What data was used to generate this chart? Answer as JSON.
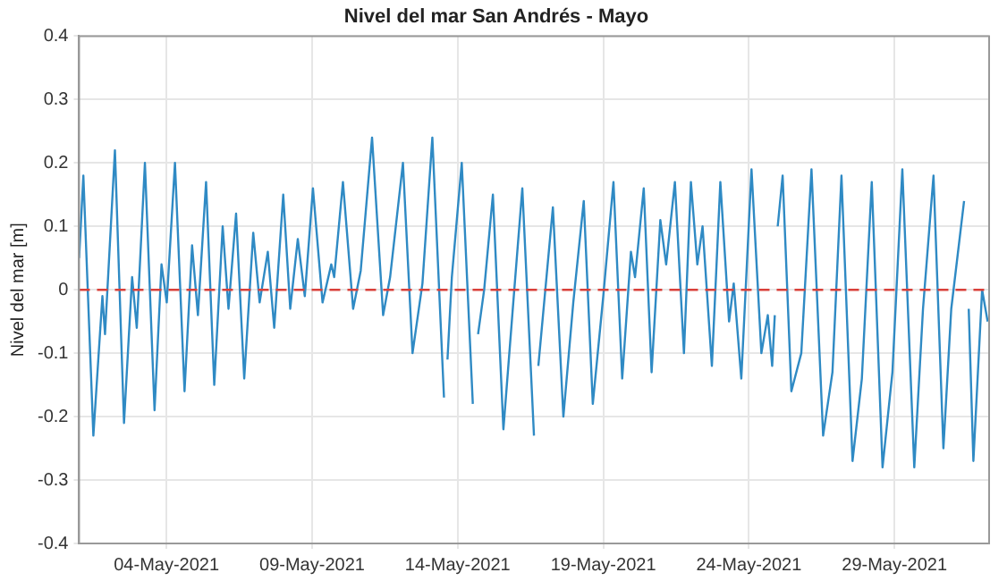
{
  "chart_data": {
    "type": "line",
    "title": "Nivel del mar San Andrés - Mayo",
    "ylabel": "Nivel del mar [m]",
    "x": [
      "2021-05-01T00:00",
      "2021-05-01T03:30",
      "2021-05-01T11:45",
      "2021-05-01T19:12",
      "2021-05-01T21:21",
      "2021-05-02T05:31",
      "2021-05-02T13:00",
      "2021-05-02T19:41",
      "2021-05-02T23:31",
      "2021-05-03T06:14",
      "2021-05-03T14:10",
      "2021-05-03T19:55",
      "2021-05-04T00:14",
      "2021-05-04T07:00",
      "2021-05-04T14:53",
      "2021-05-04T21:07",
      "2021-05-05T01:55",
      "2021-05-05T08:38",
      "2021-05-05T15:22",
      "2021-05-05T22:19",
      "2021-05-06T03:07",
      "2021-05-06T09:22",
      "2021-05-06T16:05",
      "2021-05-06T23:31",
      "2021-05-07T04:48",
      "2021-05-07T11:31",
      "2021-05-07T16:48",
      "2021-05-08T00:14",
      "2021-05-08T06:00",
      "2021-05-08T12:14",
      "2021-05-08T18:00",
      "2021-05-09T00:43",
      "2021-05-09T08:38",
      "2021-05-09T15:50",
      "2021-05-09T18:14",
      "2021-05-10T01:26",
      "2021-05-10T09:50",
      "2021-05-10T16:05",
      "2021-05-11T01:26",
      "2021-05-11T10:34",
      "2021-05-11T16:19",
      "2021-05-12T02:53",
      "2021-05-12T10:48",
      "2021-05-12T18:58",
      "2021-05-13T03:07",
      "2021-05-13T12:43",
      "2021-05-13T14:00",
      "2021-05-13T15:36",
      "2021-05-13T19:12",
      "2021-05-14T03:22",
      "2021-05-14T12:29",
      "2021-05-14T14:00",
      "2021-05-14T16:48",
      "2021-05-14T21:50",
      "2021-05-15T05:02",
      "2021-05-15T13:41",
      "2021-05-15T21:50",
      "2021-05-16T05:17",
      "2021-05-16T14:53",
      "2021-05-16T16:00",
      "2021-05-16T18:29",
      "2021-05-16T22:19",
      "2021-05-17T06:29",
      "2021-05-17T15:07",
      "2021-05-17T23:17",
      "2021-05-18T07:55",
      "2021-05-18T15:22",
      "2021-05-19T00:00",
      "2021-05-19T08:24",
      "2021-05-19T15:36",
      "2021-05-19T22:48",
      "2021-05-20T02:10",
      "2021-05-20T09:22",
      "2021-05-20T15:50",
      "2021-05-20T23:02",
      "2021-05-21T03:50",
      "2021-05-21T11:02",
      "2021-05-21T18:29",
      "2021-05-22T00:14",
      "2021-05-22T05:31",
      "2021-05-22T09:50",
      "2021-05-22T17:31",
      "2021-05-23T00:29",
      "2021-05-23T07:41",
      "2021-05-23T11:31",
      "2021-05-23T17:46",
      "2021-05-24T02:10",
      "2021-05-24T10:19",
      "2021-05-24T15:36",
      "2021-05-24T19:12",
      "2021-05-24T21:22",
      "2021-05-24T22:30",
      "2021-05-24T23:46",
      "2021-05-25T03:50",
      "2021-05-25T11:02",
      "2021-05-25T19:12",
      "2021-05-26T03:36",
      "2021-05-26T13:12",
      "2021-05-26T20:53",
      "2021-05-27T04:19",
      "2021-05-27T13:26",
      "2021-05-27T21:07",
      "2021-05-28T05:17",
      "2021-05-28T14:10",
      "2021-05-28T22:19",
      "2021-05-29T06:29",
      "2021-05-29T16:19",
      "2021-05-29T23:31",
      "2021-05-30T08:10",
      "2021-05-30T16:19",
      "2021-05-30T22:48",
      "2021-05-31T09:22",
      "2021-05-31T11:00",
      "2021-05-31T13:12",
      "2021-05-31T17:02",
      "2021-06-01T00:14",
      "2021-06-01T04:48"
    ],
    "series": [
      {
        "color": "#2f8ac4",
        "values": [
          0.05,
          0.18,
          -0.23,
          -0.01,
          -0.07,
          0.22,
          -0.21,
          0.02,
          -0.06,
          0.2,
          -0.19,
          0.04,
          -0.02,
          0.2,
          -0.16,
          0.07,
          -0.04,
          0.17,
          -0.15,
          0.1,
          -0.03,
          0.12,
          -0.14,
          0.09,
          -0.02,
          0.06,
          -0.06,
          0.15,
          -0.03,
          0.08,
          -0.01,
          0.16,
          -0.02,
          0.04,
          0.02,
          0.17,
          -0.03,
          0.03,
          0.24,
          -0.04,
          0.02,
          0.2,
          -0.1,
          0.01,
          0.24,
          -0.17,
          null,
          -0.11,
          0.02,
          0.2,
          -0.18,
          null,
          -0.07,
          0.0,
          0.15,
          -0.22,
          -0.02,
          0.16,
          -0.23,
          null,
          -0.12,
          -0.04,
          0.13,
          -0.2,
          -0.02,
          0.14,
          -0.18,
          -0.01,
          0.17,
          -0.14,
          0.06,
          0.02,
          0.16,
          -0.13,
          0.11,
          0.04,
          0.17,
          -0.1,
          0.17,
          0.04,
          0.1,
          -0.12,
          0.17,
          -0.05,
          0.01,
          -0.14,
          0.19,
          -0.1,
          -0.04,
          -0.12,
          -0.04,
          null,
          0.1,
          0.18,
          -0.16,
          -0.1,
          0.19,
          -0.23,
          -0.13,
          0.18,
          -0.27,
          -0.14,
          0.17,
          -0.28,
          -0.13,
          0.19,
          -0.28,
          -0.03,
          0.18,
          -0.25,
          -0.03,
          0.14,
          null,
          -0.03,
          -0.27,
          0.0,
          -0.05
        ]
      }
    ],
    "xlim": [
      "2021-05-01",
      "2021-06-01T06:00"
    ],
    "xticks": [
      {
        "value": "2021-05-04",
        "label": "04-May-2021"
      },
      {
        "value": "2021-05-09",
        "label": "09-May-2021"
      },
      {
        "value": "2021-05-14",
        "label": "14-May-2021"
      },
      {
        "value": "2021-05-19",
        "label": "19-May-2021"
      },
      {
        "value": "2021-05-24",
        "label": "24-May-2021"
      },
      {
        "value": "2021-05-29",
        "label": "29-May-2021"
      }
    ],
    "ylim": [
      -0.4,
      0.4
    ],
    "yticks": [
      -0.4,
      -0.3,
      -0.2,
      -0.1,
      0,
      0.1,
      0.2,
      0.3,
      0.4
    ],
    "ref_lines": [
      {
        "axis": "y",
        "value": 0,
        "color": "#d9403a",
        "line_style": "dashed"
      }
    ],
    "grid": true,
    "line_style": "solid",
    "marker": "none"
  }
}
